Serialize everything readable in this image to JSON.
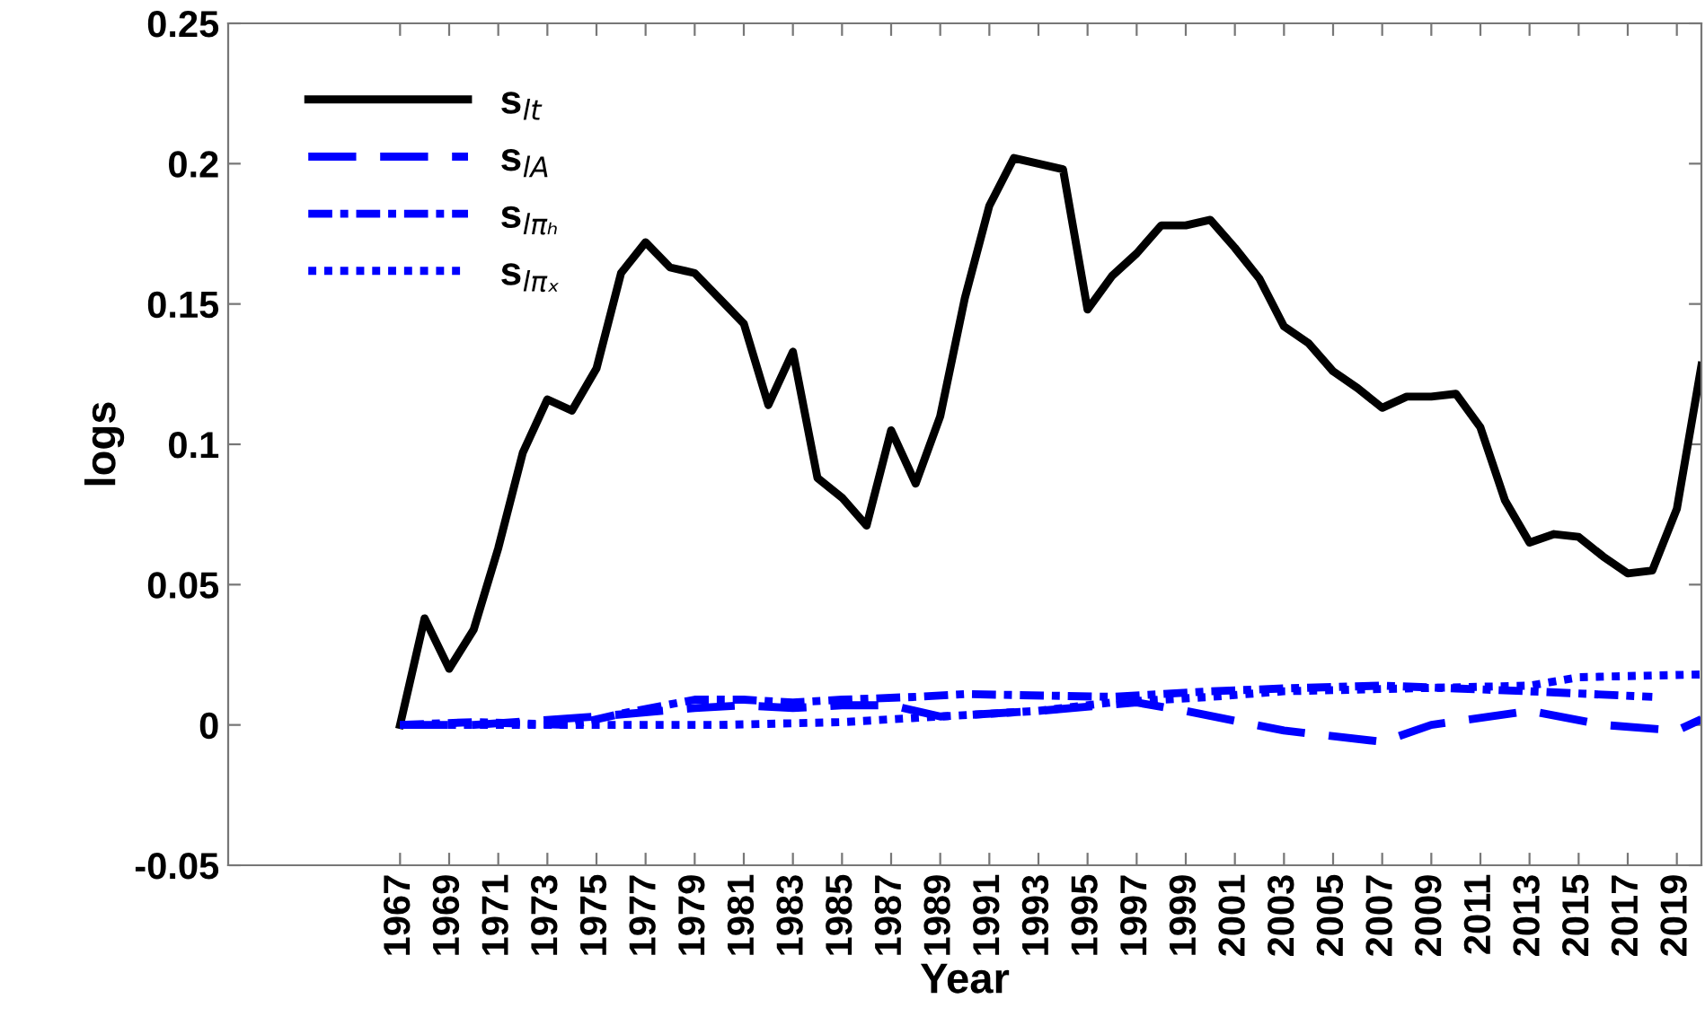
{
  "chart_data": {
    "type": "line",
    "xlabel": "Year",
    "ylabel": "logs",
    "xlim": [
      1960,
      2020
    ],
    "xticks": [
      1967,
      1969,
      1971,
      1973,
      1975,
      1977,
      1979,
      1981,
      1983,
      1985,
      1987,
      1989,
      1991,
      1993,
      1995,
      1997,
      1999,
      2001,
      2003,
      2005,
      2007,
      2009,
      2011,
      2013,
      2015,
      2017,
      2019
    ],
    "ylim": [
      -0.05,
      0.25
    ],
    "yticks": [
      {
        "value": -0.05,
        "label": "-0.05"
      },
      0,
      0.05,
      0.1,
      0.15,
      0.2,
      0.25
    ],
    "grid": false,
    "legend": "top left",
    "series": [
      {
        "name": "s$_{lt}$",
        "color": "#000000",
        "line_style": "solid",
        "x": [
          1967,
          1968,
          1969,
          1970,
          1971,
          1972,
          1973,
          1974,
          1975,
          1976,
          1977,
          1978,
          1979,
          1980,
          1981,
          1982,
          1983,
          1984,
          1985,
          1986,
          1987,
          1988,
          1989,
          1990,
          1991,
          1992,
          1993,
          1994,
          1995,
          1996,
          1997,
          1998,
          1999,
          2000,
          2001,
          2002,
          2003,
          2004,
          2005,
          2006,
          2007,
          2008,
          2009,
          2010,
          2011,
          2012,
          2013,
          2014,
          2015,
          2016,
          2017,
          2018,
          2019,
          2020
        ],
        "values": [
          0.0,
          0.038,
          0.02,
          0.034,
          0.063,
          0.097,
          0.116,
          0.112,
          0.127,
          0.161,
          0.172,
          0.163,
          0.161,
          0.152,
          0.143,
          0.114,
          0.133,
          0.088,
          0.081,
          0.071,
          0.105,
          0.086,
          0.11,
          0.152,
          0.185,
          0.202,
          0.2,
          0.198,
          0.148,
          0.16,
          0.168,
          0.178,
          0.178,
          0.18,
          0.17,
          0.159,
          0.142,
          0.136,
          0.126,
          0.12,
          0.113,
          0.117,
          0.117,
          0.118,
          0.106,
          0.08,
          0.065,
          0.068,
          0.067,
          0.06,
          0.054,
          0.055,
          0.077,
          0.128
        ]
      },
      {
        "name": "s$_{lA}$",
        "color": "#0000ff",
        "line_style": "dashed",
        "x": [
          1967,
          1970,
          1975,
          1979,
          1981,
          1983,
          1985,
          1987,
          1989,
          1993,
          1997,
          1999,
          2003,
          2007,
          2009,
          2013,
          2016,
          2019,
          2020
        ],
        "values": [
          0.0,
          0.0,
          0.003,
          0.006,
          0.007,
          0.006,
          0.007,
          0.007,
          0.003,
          0.005,
          0.008,
          0.005,
          -0.002,
          -0.006,
          0.0,
          0.005,
          0.0,
          -0.002,
          0.002
        ]
      },
      {
        "name": "s$_{lπₕ}$",
        "color": "#0000ff",
        "line_style": "dashdot",
        "x": [
          1967,
          1970,
          1974,
          1976,
          1979,
          1981,
          1983,
          1985,
          1988,
          1990,
          1996,
          2000,
          2003,
          2007,
          2010,
          2013,
          2018
        ],
        "values": [
          0.0,
          0.001,
          0.0,
          0.004,
          0.009,
          0.009,
          0.008,
          0.009,
          0.01,
          0.011,
          0.01,
          0.012,
          0.013,
          0.014,
          0.013,
          0.012,
          0.01
        ]
      },
      {
        "name": "s$_{lπₓ}$",
        "color": "#0000ff",
        "line_style": "dotted",
        "x": [
          1967,
          1975,
          1980,
          1985,
          1989,
          1993,
          1996,
          2000,
          2003,
          2008,
          2013,
          2015,
          2020
        ],
        "values": [
          0.0,
          0.0,
          0.0,
          0.001,
          0.003,
          0.005,
          0.008,
          0.01,
          0.012,
          0.013,
          0.014,
          0.017,
          0.018
        ]
      }
    ]
  }
}
